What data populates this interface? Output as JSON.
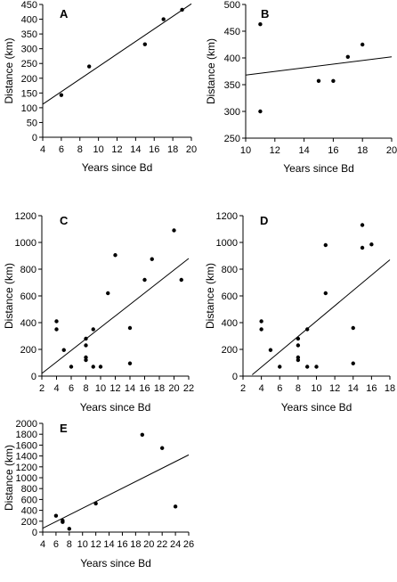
{
  "chart_data": [
    {
      "type": "scatter",
      "panel_label": "A",
      "xlabel": "Years since Bd",
      "ylabel": "Distance (km)",
      "xlim": [
        4,
        20
      ],
      "ylim": [
        0,
        450
      ],
      "xticks": [
        4,
        6,
        8,
        10,
        12,
        14,
        16,
        18,
        20
      ],
      "yticks": [
        0,
        50,
        100,
        150,
        200,
        250,
        300,
        350,
        400,
        450
      ],
      "points": [
        [
          6,
          143
        ],
        [
          9,
          240
        ],
        [
          15,
          315
        ],
        [
          17,
          400
        ],
        [
          19,
          432
        ]
      ],
      "fit_line": [
        [
          4,
          112
        ],
        [
          20,
          452
        ]
      ]
    },
    {
      "type": "scatter",
      "panel_label": "B",
      "xlabel": "Years since Bd",
      "ylabel": "Distance (km)",
      "xlim": [
        10,
        20
      ],
      "ylim": [
        250,
        500
      ],
      "xticks": [
        10,
        12,
        14,
        16,
        18,
        20
      ],
      "yticks": [
        250,
        300,
        350,
        400,
        450,
        500
      ],
      "points": [
        [
          11,
          463
        ],
        [
          11,
          300
        ],
        [
          15,
          357
        ],
        [
          16,
          357
        ],
        [
          17,
          402
        ],
        [
          18,
          425
        ]
      ],
      "fit_line": [
        [
          10,
          368
        ],
        [
          20,
          402
        ]
      ]
    },
    {
      "type": "scatter",
      "panel_label": "C",
      "xlabel": "Years since Bd",
      "ylabel": "Distance (km)",
      "xlim": [
        2,
        22
      ],
      "ylim": [
        0,
        1200
      ],
      "xticks": [
        2,
        4,
        6,
        8,
        10,
        12,
        14,
        16,
        18,
        20,
        22
      ],
      "yticks": [
        0,
        200,
        400,
        600,
        800,
        1000,
        1200
      ],
      "points": [
        [
          4,
          410
        ],
        [
          4,
          350
        ],
        [
          5,
          195
        ],
        [
          6,
          70
        ],
        [
          8,
          280
        ],
        [
          8,
          230
        ],
        [
          8,
          140
        ],
        [
          8,
          120
        ],
        [
          9,
          350
        ],
        [
          9,
          70
        ],
        [
          10,
          70
        ],
        [
          11,
          620
        ],
        [
          12,
          905
        ],
        [
          14,
          360
        ],
        [
          14,
          95
        ],
        [
          16,
          720
        ],
        [
          17,
          875
        ],
        [
          20,
          1090
        ],
        [
          21,
          720
        ]
      ],
      "fit_line": [
        [
          2,
          20
        ],
        [
          22,
          880
        ]
      ]
    },
    {
      "type": "scatter",
      "panel_label": "D",
      "xlabel": "Years since Bd",
      "ylabel": "Distance (km)",
      "xlim": [
        2,
        18
      ],
      "ylim": [
        0,
        1200
      ],
      "xticks": [
        2,
        4,
        6,
        8,
        10,
        12,
        14,
        16,
        18
      ],
      "yticks": [
        0,
        200,
        400,
        600,
        800,
        1000,
        1200
      ],
      "points": [
        [
          4,
          410
        ],
        [
          4,
          350
        ],
        [
          5,
          195
        ],
        [
          6,
          70
        ],
        [
          8,
          280
        ],
        [
          8,
          230
        ],
        [
          8,
          140
        ],
        [
          8,
          120
        ],
        [
          9,
          350
        ],
        [
          9,
          70
        ],
        [
          10,
          70
        ],
        [
          11,
          980
        ],
        [
          11,
          620
        ],
        [
          14,
          360
        ],
        [
          14,
          95
        ],
        [
          15,
          1130
        ],
        [
          15,
          960
        ],
        [
          16,
          985
        ]
      ],
      "fit_line": [
        [
          3,
          10
        ],
        [
          18,
          870
        ]
      ]
    },
    {
      "type": "scatter",
      "panel_label": "E",
      "xlabel": "Years since Bd",
      "ylabel": "Distance (km)",
      "xlim": [
        4,
        26
      ],
      "ylim": [
        0,
        2000
      ],
      "xticks": [
        4,
        6,
        8,
        10,
        12,
        14,
        16,
        18,
        20,
        22,
        24,
        26
      ],
      "yticks": [
        0,
        200,
        400,
        600,
        800,
        1000,
        1200,
        1400,
        1600,
        1800,
        2000
      ],
      "points": [
        [
          6,
          300
        ],
        [
          7,
          210
        ],
        [
          7,
          185
        ],
        [
          8,
          60
        ],
        [
          12,
          525
        ],
        [
          19,
          1790
        ],
        [
          22,
          1545
        ],
        [
          24,
          470
        ]
      ],
      "fit_line": [
        [
          4,
          70
        ],
        [
          26,
          1420
        ]
      ]
    }
  ]
}
